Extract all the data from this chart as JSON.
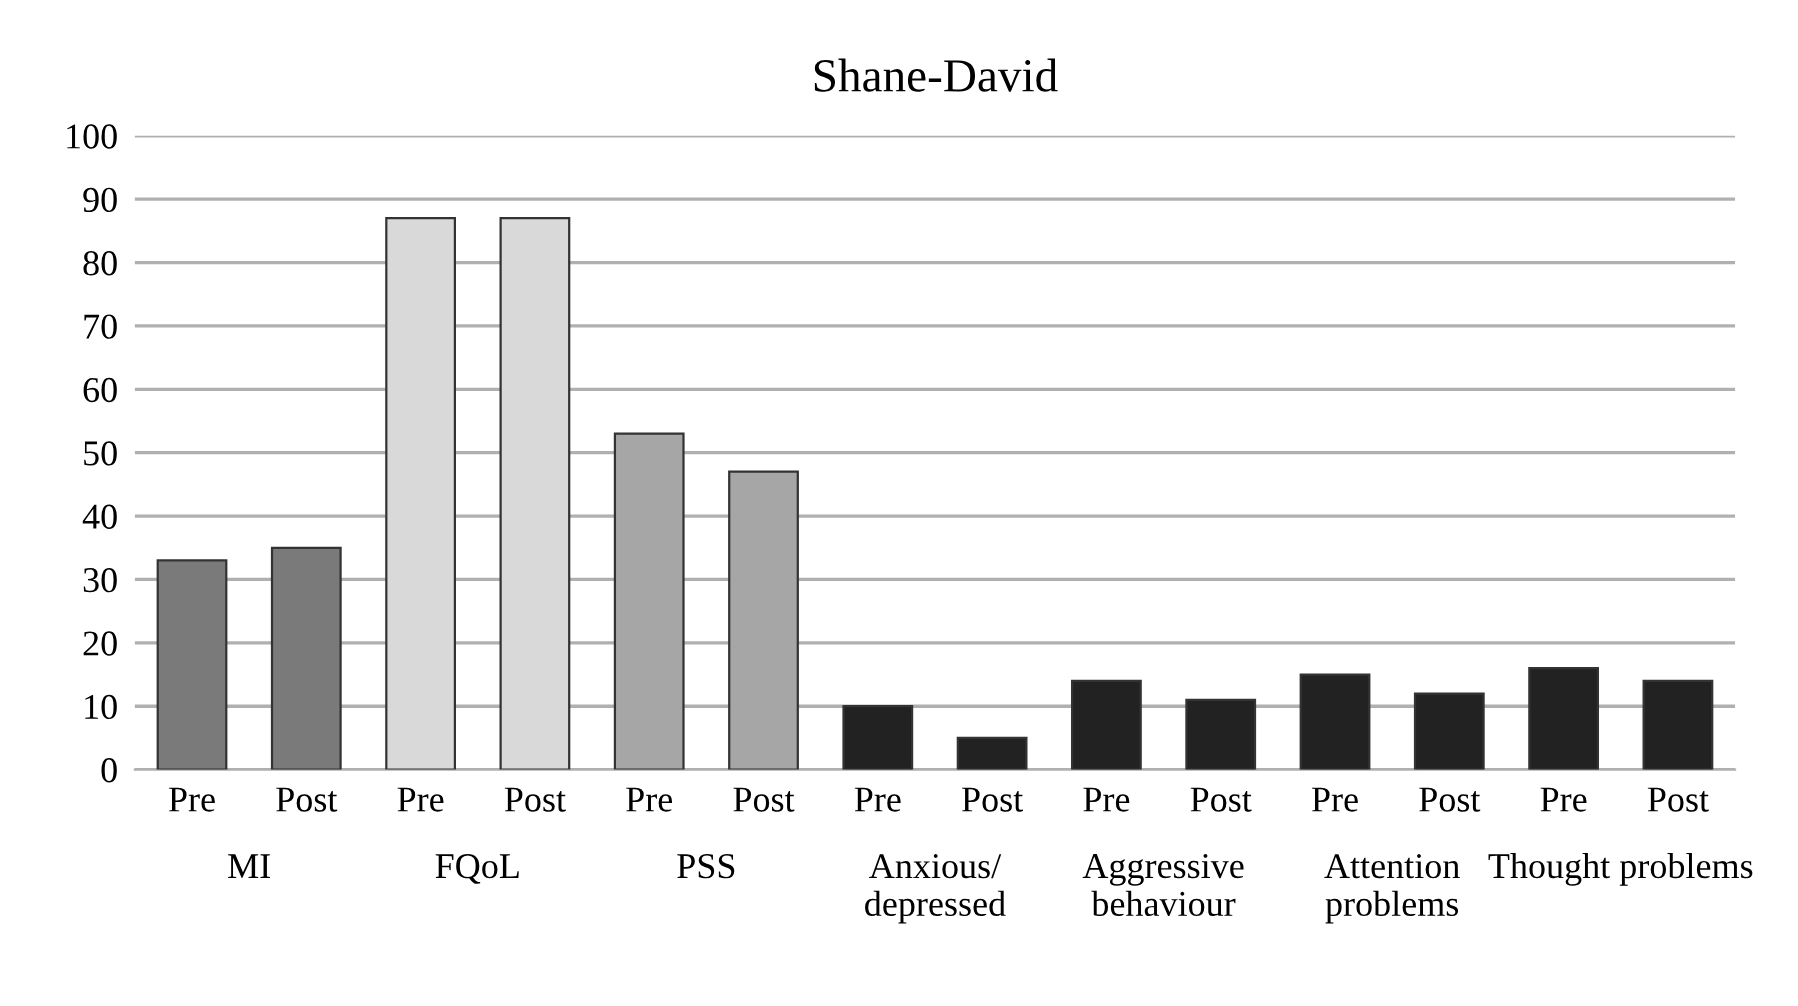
{
  "chart_data": {
    "type": "bar",
    "title": "Shane-David",
    "categories": [
      "Pre",
      "Post",
      "Pre",
      "Post",
      "Pre",
      "Post",
      "Pre",
      "Post",
      "Pre",
      "Post",
      "Pre",
      "Post",
      "Pre",
      "Post"
    ],
    "values": [
      33,
      35,
      87,
      87,
      53,
      47,
      10,
      5,
      14,
      11,
      15,
      12,
      16,
      14
    ],
    "colors": [
      "#7a7a7a",
      "#7a7a7a",
      "#d9d9d9",
      "#d9d9d9",
      "#a6a6a6",
      "#a6a6a6",
      "#222222",
      "#222222",
      "#222222",
      "#222222",
      "#222222",
      "#222222",
      "#222222",
      "#222222"
    ],
    "annotations": [
      "MI",
      "FQoL",
      "PSS",
      "Anxious/\ndepressed",
      "Aggressive\nbehaviour",
      "Attention\nproblems",
      "Thought problems"
    ],
    "ylim": [
      0,
      100
    ],
    "yticks": [
      0,
      10,
      20,
      30,
      40,
      50,
      60,
      70,
      80,
      90,
      100
    ],
    "grid": "y",
    "legend": false
  }
}
